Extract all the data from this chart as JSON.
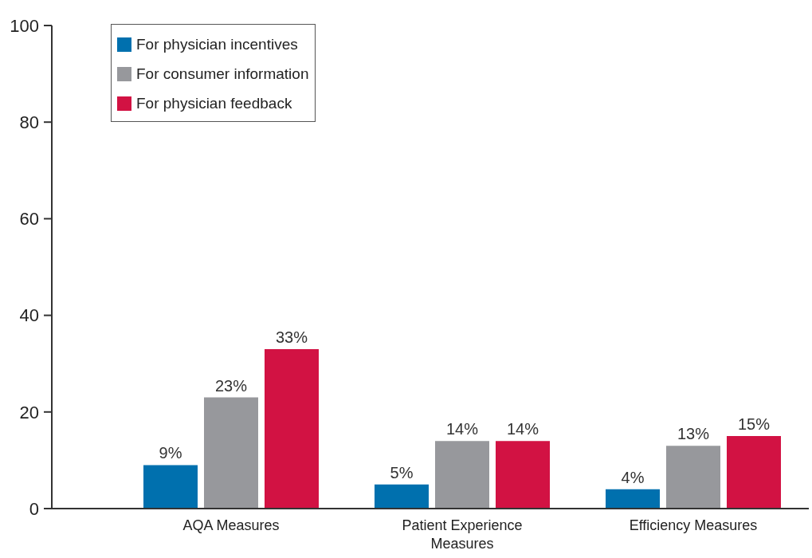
{
  "chart_data": {
    "type": "bar",
    "categories": [
      "AQA Measures",
      "Patient Experience Measures",
      "Efficiency Measures"
    ],
    "series": [
      {
        "name": "For physician incentives",
        "color": "#0070ae",
        "values": [
          9,
          5,
          4
        ],
        "value_labels": [
          "9%",
          "5%",
          "4%"
        ]
      },
      {
        "name": "For consumer information",
        "color": "#97989c",
        "values": [
          23,
          14,
          13
        ],
        "value_labels": [
          "23%",
          "14%",
          "13%"
        ]
      },
      {
        "name": "For physician feedback",
        "color": "#d21243",
        "values": [
          33,
          14,
          15
        ],
        "value_labels": [
          "33%",
          "14%",
          "15%"
        ]
      }
    ],
    "ylim": [
      0,
      100
    ],
    "yticks": [
      0,
      20,
      40,
      60,
      80,
      100
    ],
    "legend": "top left"
  }
}
